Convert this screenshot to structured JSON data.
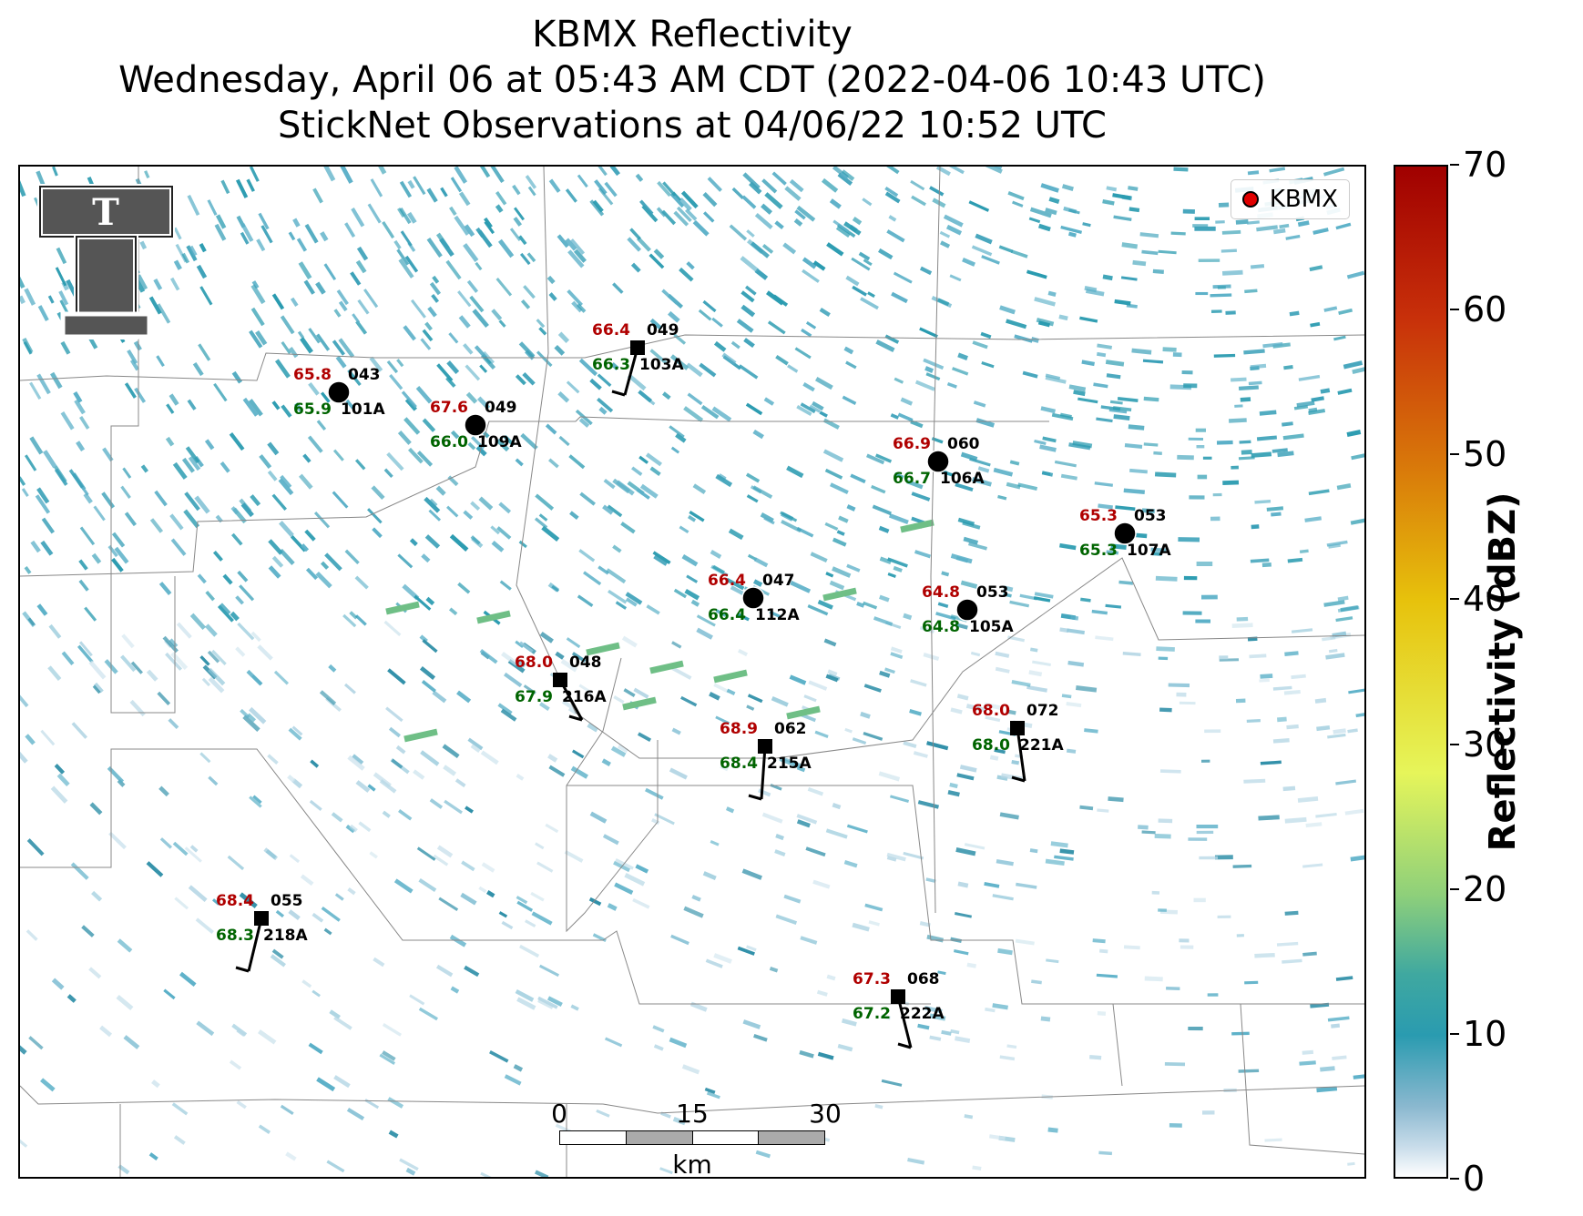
{
  "title": {
    "line1": "KBMX Reflectivity",
    "line2": "Wednesday, April 06 at 05:43 AM CDT (2022-04-06 10:43 UTC)",
    "line3": "StickNet Observations at 04/06/22 10:52 UTC"
  },
  "legend": {
    "label": "KBMX",
    "marker_color": "#e00000"
  },
  "colorbar": {
    "title": "Reflectivity (dBZ)",
    "ticks": [
      "0",
      "10",
      "20",
      "30",
      "40",
      "50",
      "60",
      "70"
    ]
  },
  "scalebar": {
    "labels": [
      "0",
      "15",
      "30"
    ],
    "unit": "km"
  },
  "logo": {
    "text": "T",
    "icon": "double-t-logo-icon"
  },
  "colors": {
    "temperature": "#b00000",
    "dewpoint": "#006400",
    "echo": "#2a9bb0"
  },
  "stations": [
    {
      "id": "101A",
      "temp": "65.8",
      "dew": "65.9",
      "dir": "043",
      "marker": "circle"
    },
    {
      "id": "109A",
      "temp": "67.6",
      "dew": "66.0",
      "dir": "049",
      "marker": "circle"
    },
    {
      "id": "103A",
      "temp": "66.4",
      "dew": "66.3",
      "dir": "049",
      "marker": "square"
    },
    {
      "id": "106A",
      "temp": "66.9",
      "dew": "66.7",
      "dir": "060",
      "marker": "circle"
    },
    {
      "id": "107A",
      "temp": "65.3",
      "dew": "65.3",
      "dir": "053",
      "marker": "circle"
    },
    {
      "id": "112A",
      "temp": "66.4",
      "dew": "66.4",
      "dir": "047",
      "marker": "circle"
    },
    {
      "id": "105A",
      "temp": "64.8",
      "dew": "64.8",
      "dir": "053",
      "marker": "circle"
    },
    {
      "id": "216A",
      "temp": "68.0",
      "dew": "67.9",
      "dir": "048",
      "marker": "square"
    },
    {
      "id": "215A",
      "temp": "68.9",
      "dew": "68.4",
      "dir": "062",
      "marker": "square"
    },
    {
      "id": "221A",
      "temp": "68.0",
      "dew": "68.0",
      "dir": "072",
      "marker": "square"
    },
    {
      "id": "218A",
      "temp": "68.4",
      "dew": "68.3",
      "dir": "055",
      "marker": "square"
    },
    {
      "id": "222A",
      "temp": "67.3",
      "dew": "67.2",
      "dir": "068",
      "marker": "square"
    }
  ]
}
